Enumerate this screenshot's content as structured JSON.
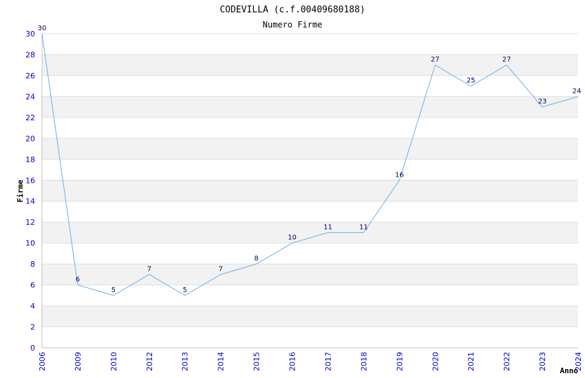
{
  "chart_data": {
    "type": "line",
    "title": "CODEVILLA (c.f.00409680188)",
    "subtitle": "Numero Firme",
    "xlabel": "Anno",
    "ylabel": "Firme",
    "categories": [
      "2006",
      "2009",
      "2010",
      "2012",
      "2013",
      "2014",
      "2015",
      "2016",
      "2017",
      "2018",
      "2019",
      "2020",
      "2021",
      "2022",
      "2023",
      "2024"
    ],
    "series": [
      {
        "values": [
          30,
          6,
          5,
          7,
          5,
          7,
          8,
          10,
          11,
          11,
          16,
          27,
          25,
          27,
          23,
          24
        ]
      }
    ],
    "ylim": [
      0,
      30
    ],
    "ytick_step": 2,
    "grid": true,
    "colors": {
      "line": "#6aaee8",
      "tick_text": "#0000cc",
      "data_label": "#000066",
      "band": "#f2f2f2",
      "gridline": "#dddddd",
      "axis": "#c0c0c0"
    }
  }
}
